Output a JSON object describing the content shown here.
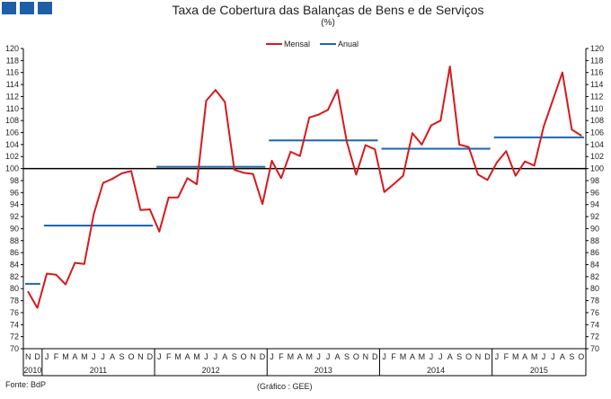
{
  "header": {
    "squares": [
      "#1f5fa8",
      "#1f5fa8",
      "#1f5fa8"
    ]
  },
  "chart_data": {
    "type": "line",
    "title": "Taxa de Cobertura das Balanças de Bens e de Serviços",
    "subtitle": "(%)",
    "ylim": [
      70,
      120
    ],
    "y_ticks": [
      70,
      72,
      74,
      76,
      78,
      80,
      82,
      84,
      86,
      88,
      90,
      92,
      94,
      96,
      98,
      100,
      102,
      104,
      106,
      108,
      110,
      112,
      114,
      116,
      118,
      120
    ],
    "reference_line": 100,
    "legend": {
      "position": "top-center",
      "items": [
        "Mensal",
        "Anual"
      ]
    },
    "x": [
      "N",
      "D",
      "J",
      "F",
      "M",
      "A",
      "M",
      "J",
      "J",
      "A",
      "S",
      "O",
      "N",
      "D",
      "J",
      "F",
      "M",
      "A",
      "M",
      "J",
      "J",
      "A",
      "S",
      "O",
      "N",
      "D",
      "J",
      "F",
      "M",
      "A",
      "M",
      "J",
      "J",
      "A",
      "S",
      "O",
      "N",
      "D",
      "J",
      "F",
      "M",
      "A",
      "M",
      "J",
      "J",
      "A",
      "S",
      "O",
      "N",
      "D",
      "J",
      "F",
      "M",
      "A",
      "M",
      "J",
      "J",
      "A",
      "S",
      "O"
    ],
    "years": [
      {
        "label": "2010",
        "start": 0,
        "end": 1
      },
      {
        "label": "2011",
        "start": 2,
        "end": 13
      },
      {
        "label": "2012",
        "start": 14,
        "end": 25
      },
      {
        "label": "2013",
        "start": 26,
        "end": 37
      },
      {
        "label": "2014",
        "start": 38,
        "end": 49
      },
      {
        "label": "2015",
        "start": 50,
        "end": 59
      }
    ],
    "series": [
      {
        "name": "Mensal",
        "color": "#d7191c",
        "values": [
          79.5,
          76.8,
          82.5,
          82.3,
          80.7,
          84.3,
          84.1,
          92.4,
          97.6,
          98.3,
          99.2,
          99.6,
          93.1,
          93.2,
          89.5,
          95.2,
          95.2,
          98.4,
          97.4,
          111.3,
          113.1,
          111.1,
          99.8,
          99.3,
          99.1,
          94.1,
          101.3,
          98.4,
          102.8,
          102.1,
          108.5,
          109.0,
          109.8,
          113.1,
          104.5,
          99.0,
          103.9,
          103.2,
          96.1,
          97.4,
          98.8,
          105.9,
          104.0,
          107.2,
          108.0,
          117.0,
          104.0,
          103.6,
          99.0,
          98.1,
          101.0,
          102.9,
          98.8,
          101.2,
          100.5,
          107.0,
          111.5,
          116.0,
          106.5,
          105.5
        ]
      },
      {
        "name": "Anual",
        "color": "#1f66aa",
        "segments": [
          {
            "start": 0,
            "end": 1,
            "value": 80.8
          },
          {
            "start": 2,
            "end": 13,
            "value": 90.5
          },
          {
            "start": 14,
            "end": 25,
            "value": 100.3
          },
          {
            "start": 26,
            "end": 37,
            "value": 104.7
          },
          {
            "start": 38,
            "end": 49,
            "value": 103.3
          },
          {
            "start": 50,
            "end": 59,
            "value": 105.2
          }
        ]
      }
    ]
  },
  "footer": {
    "source": "Fonte: BdP",
    "credit": "(Gráfico : GEE)"
  }
}
